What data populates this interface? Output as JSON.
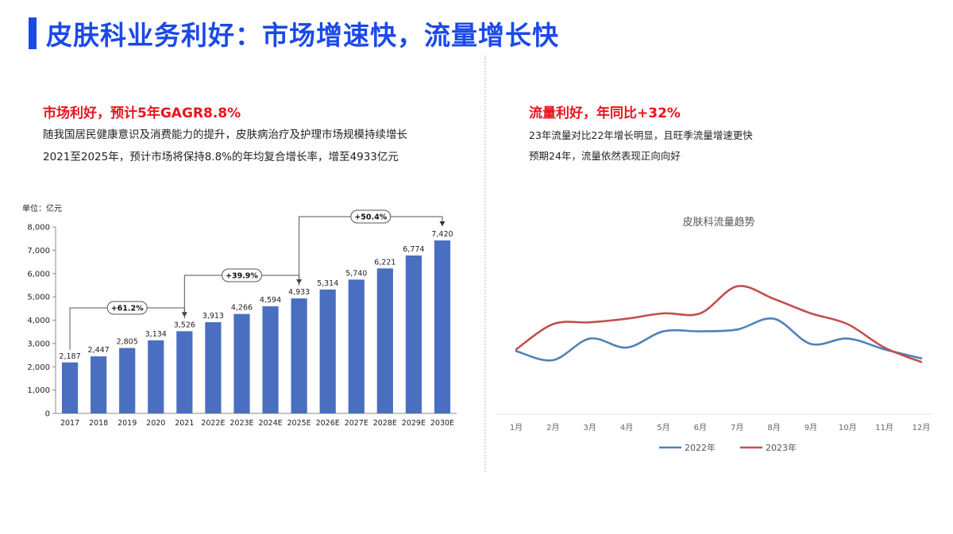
{
  "title": "皮肤科业务利好：市场增速快，流量增长快",
  "left": {
    "headline": "市场利好，预计5年GAGR8.8%",
    "line1": "随我国居民健康意识及消费能力的提升，皮肤病治疗及护理市场规模持续增长",
    "line2": "2021至2025年，预计市场将保持8.8%的年均复合增长率，增至4933亿元"
  },
  "right": {
    "headline": "流量利好，年同比+32%",
    "line1": "23年流量对比22年增长明显，且旺季流量增速更快",
    "line2": "预期24年，流量依然表现正向向好"
  },
  "chart_data": [
    {
      "type": "bar",
      "unit_label": "单位：亿元",
      "categories": [
        "2017",
        "2018",
        "2019",
        "2020",
        "2021",
        "2022E",
        "2023E",
        "2024E",
        "2025E",
        "2026E",
        "2027E",
        "2028E",
        "2029E",
        "2030E"
      ],
      "values": [
        2187,
        2447,
        2805,
        3134,
        3526,
        3913,
        4266,
        4594,
        4933,
        5314,
        5740,
        6221,
        6774,
        7420
      ],
      "value_labels": [
        "2,187",
        "2,447",
        "2,805",
        "3,134",
        "3,526",
        "3,913",
        "4,266",
        "4,594",
        "4,933",
        "5,314",
        "5,740",
        "6,221",
        "6,774",
        "7,420"
      ],
      "ylim": [
        0,
        8000
      ],
      "yticks": [
        0,
        1000,
        2000,
        3000,
        4000,
        5000,
        6000,
        7000,
        8000
      ],
      "ytick_labels": [
        "0",
        "1,000",
        "2,000",
        "3,000",
        "4,000",
        "5,000",
        "6,000",
        "7,000",
        "8,000"
      ],
      "color": "#4a6fc1",
      "annotations": [
        {
          "label": "+61.2%",
          "from": "2017",
          "to": "2021"
        },
        {
          "label": "+39.9%",
          "from": "2021",
          "to": "2025E"
        },
        {
          "label": "+50.4%",
          "from": "2025E",
          "to": "2030E"
        }
      ]
    },
    {
      "type": "line",
      "title": "皮肤科流量趋势",
      "categories": [
        "1月",
        "2月",
        "3月",
        "4月",
        "5月",
        "6月",
        "7月",
        "8月",
        "9月",
        "10月",
        "11月",
        "12月"
      ],
      "ylim": [
        0,
        10
      ],
      "grid": false,
      "legend_position": "bottom",
      "series": [
        {
          "name": "2022年",
          "color": "#4f81bd",
          "values": [
            3.5,
            3.0,
            4.2,
            3.7,
            4.6,
            4.6,
            4.7,
            5.3,
            3.9,
            4.2,
            3.6,
            3.1
          ]
        },
        {
          "name": "2023年",
          "color": "#c0504d",
          "values": [
            3.6,
            5.0,
            5.1,
            5.3,
            5.6,
            5.6,
            7.1,
            6.4,
            5.6,
            5.0,
            3.7,
            2.9
          ]
        }
      ]
    }
  ]
}
